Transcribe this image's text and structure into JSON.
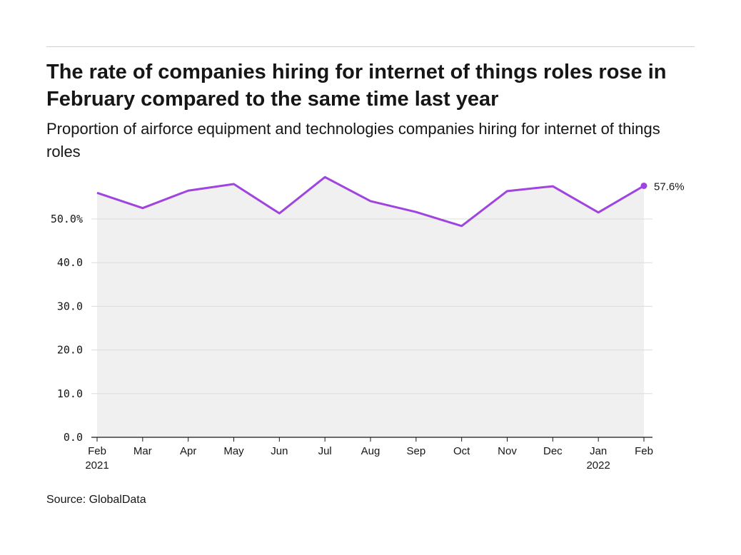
{
  "title": "The rate of companies hiring for internet of things roles rose in February compared to the same time last year",
  "subtitle": "Proportion of airforce equipment and technologies companies hiring for internet of things roles",
  "source": "Source: GlobalData",
  "chart_data": {
    "type": "area",
    "categories": [
      "Feb",
      "Mar",
      "Apr",
      "May",
      "Jun",
      "Jul",
      "Aug",
      "Sep",
      "Oct",
      "Nov",
      "Dec",
      "Jan",
      "Feb"
    ],
    "year_labels": {
      "0": "2021",
      "11": "2022"
    },
    "values": [
      56.0,
      52.5,
      56.5,
      58.0,
      51.3,
      59.6,
      54.1,
      51.6,
      48.4,
      56.4,
      57.5,
      51.5,
      57.6
    ],
    "y_ticks": [
      "0.0",
      "10.0",
      "20.0",
      "30.0",
      "40.0",
      "50.0%"
    ],
    "ylim": [
      0,
      60
    ],
    "end_label": "57.6%",
    "line_color": "#a044e0",
    "fill_color": "#f0f0f0",
    "grid": true
  }
}
